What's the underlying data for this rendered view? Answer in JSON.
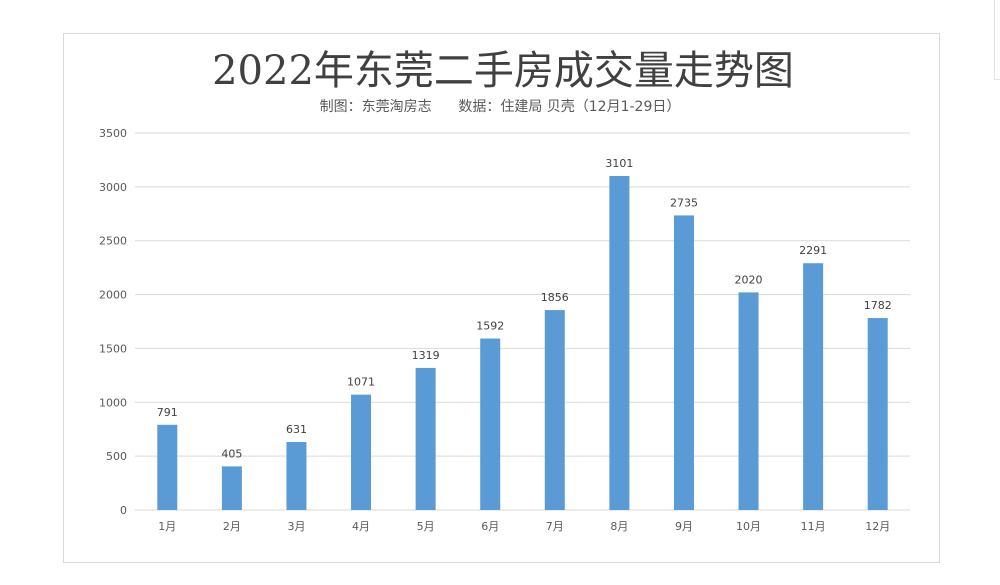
{
  "chart_data": {
    "type": "bar",
    "title": "2022年东莞二手房成交量走势图",
    "subtitle": "制图：东莞淘房志      数据：住建局 贝壳（12月1-29日）",
    "categories": [
      "1月",
      "2月",
      "3月",
      "4月",
      "5月",
      "6月",
      "7月",
      "8月",
      "9月",
      "10月",
      "11月",
      "12月"
    ],
    "values": [
      791,
      405,
      631,
      1071,
      1319,
      1592,
      1856,
      3101,
      2735,
      2020,
      2291,
      1782
    ],
    "data_labels": [
      "791",
      "405",
      "631",
      "1071",
      "1319",
      "1592",
      "1856",
      "3101",
      "2735",
      "2020",
      "2291",
      "1782"
    ],
    "ylim": [
      0,
      3500
    ],
    "yticks": [
      0,
      500,
      1000,
      1500,
      2000,
      2500,
      3000,
      3500
    ],
    "ytick_labels": [
      "0",
      "500",
      "1000",
      "1500",
      "2000",
      "2500",
      "3000",
      "3500"
    ],
    "grid": true,
    "bar_color": "#5b9bd5",
    "gridline_color": "#d9d9d9"
  }
}
